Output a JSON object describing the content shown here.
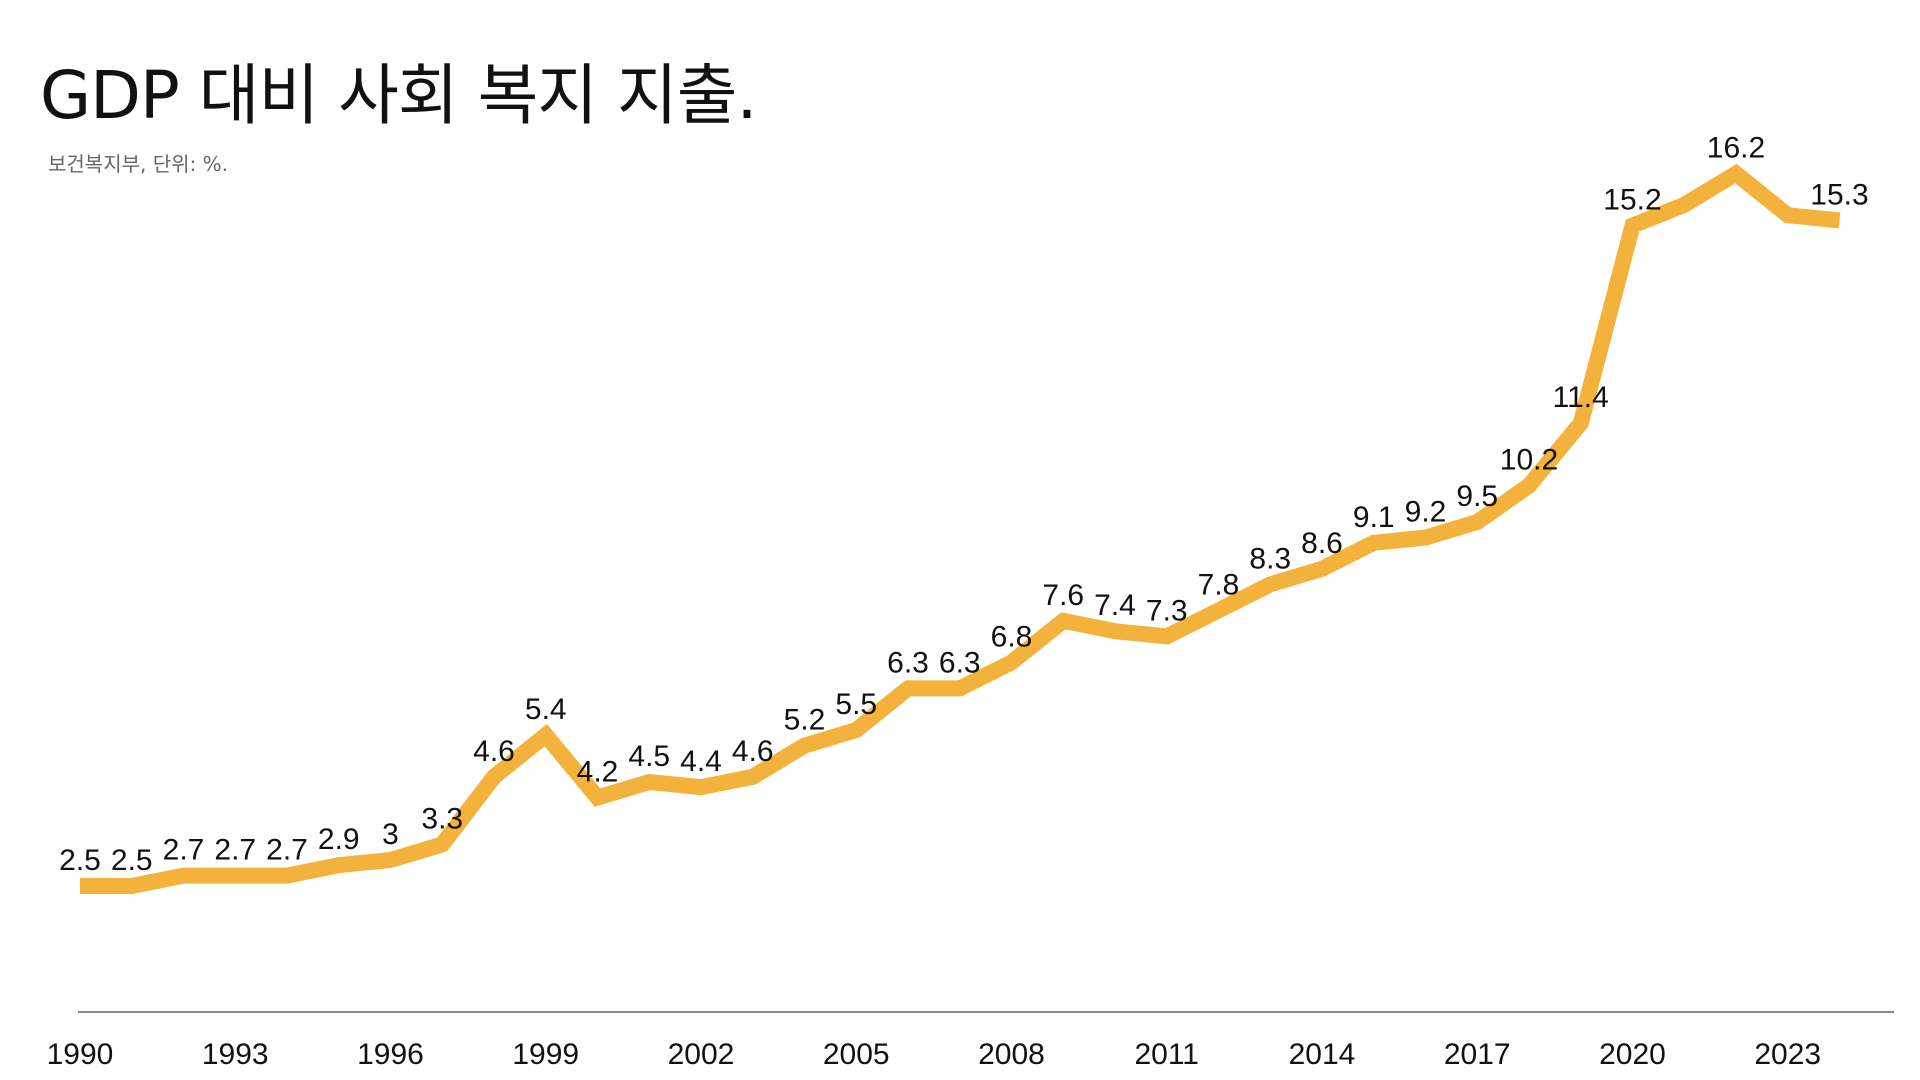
{
  "chart_data": {
    "type": "line",
    "title": "GDP 대비 사회 복지 지출.",
    "subtitle": "보건복지부, 단위: %.",
    "xlabel": "",
    "ylabel": "",
    "x": [
      1990,
      1991,
      1992,
      1993,
      1994,
      1995,
      1996,
      1997,
      1998,
      1999,
      2000,
      2001,
      2002,
      2003,
      2004,
      2005,
      2006,
      2007,
      2008,
      2009,
      2010,
      2011,
      2012,
      2013,
      2014,
      2015,
      2016,
      2017,
      2018,
      2019,
      2020,
      2021,
      2022,
      2023,
      2024
    ],
    "series": [
      {
        "values": [
          2.5,
          2.5,
          2.7,
          2.7,
          2.7,
          2.9,
          3,
          3.3,
          4.6,
          5.4,
          4.2,
          4.5,
          4.4,
          4.6,
          5.2,
          5.5,
          6.3,
          6.3,
          6.8,
          7.6,
          7.4,
          7.3,
          7.8,
          8.3,
          8.6,
          9.1,
          9.2,
          9.5,
          10.2,
          11.4,
          15.2,
          15.6,
          16.2,
          15.4,
          15.3
        ],
        "labels": [
          "2.5",
          "2.5",
          "2.7",
          "2.7",
          "2.7",
          "2.9",
          "3",
          "3.3",
          "4.6",
          "5.4",
          "4.2",
          "4.5",
          "4.4",
          "4.6",
          "5.2",
          "5.5",
          "6.3",
          "6.3",
          "6.8",
          "7.6",
          "7.4",
          "7.3",
          "7.8",
          "8.3",
          "8.6",
          "9.1",
          "9.2",
          "9.5",
          "10.2",
          "11.4",
          "15.2",
          "",
          "16.2",
          "",
          "15.3"
        ],
        "color": "#F3B23C"
      }
    ],
    "xticks": [
      "1990",
      "1993",
      "1996",
      "1999",
      "2002",
      "2005",
      "2008",
      "2011",
      "2014",
      "2017",
      "2020",
      "2023"
    ],
    "ylim": [
      0,
      17
    ],
    "grid": false,
    "legend": "none",
    "axis_color": "#888888"
  }
}
